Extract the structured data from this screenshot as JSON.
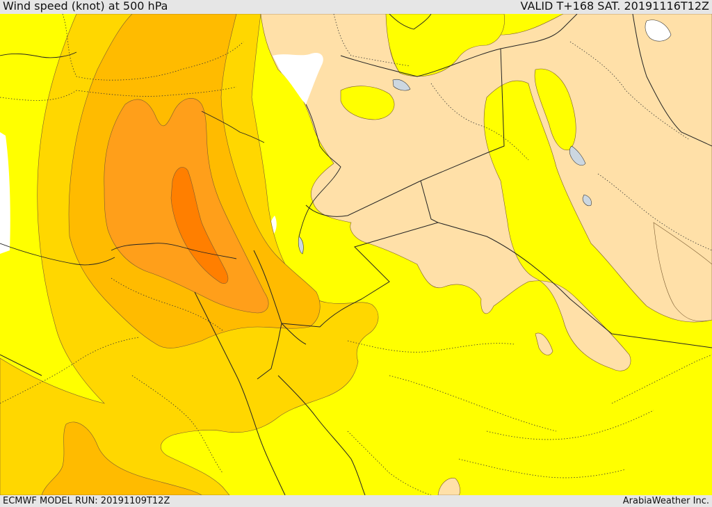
{
  "header": {
    "title": "Wind speed (knot) at 500 hPa",
    "valid": "VALID T+168 SAT. 20191116T12Z"
  },
  "footer": {
    "model_run": "ECMWF MODEL RUN: 20191109T12Z",
    "credit": "ArabiaWeather Inc."
  },
  "palette": {
    "calm_land": "#ffe0a8",
    "band_1": "#ffff00",
    "band_2": "#ffd700",
    "band_3": "#ffbb00",
    "band_4": "#ff9f1a",
    "band_5": "#ff7f00",
    "water_gap": "#ffffff"
  }
}
